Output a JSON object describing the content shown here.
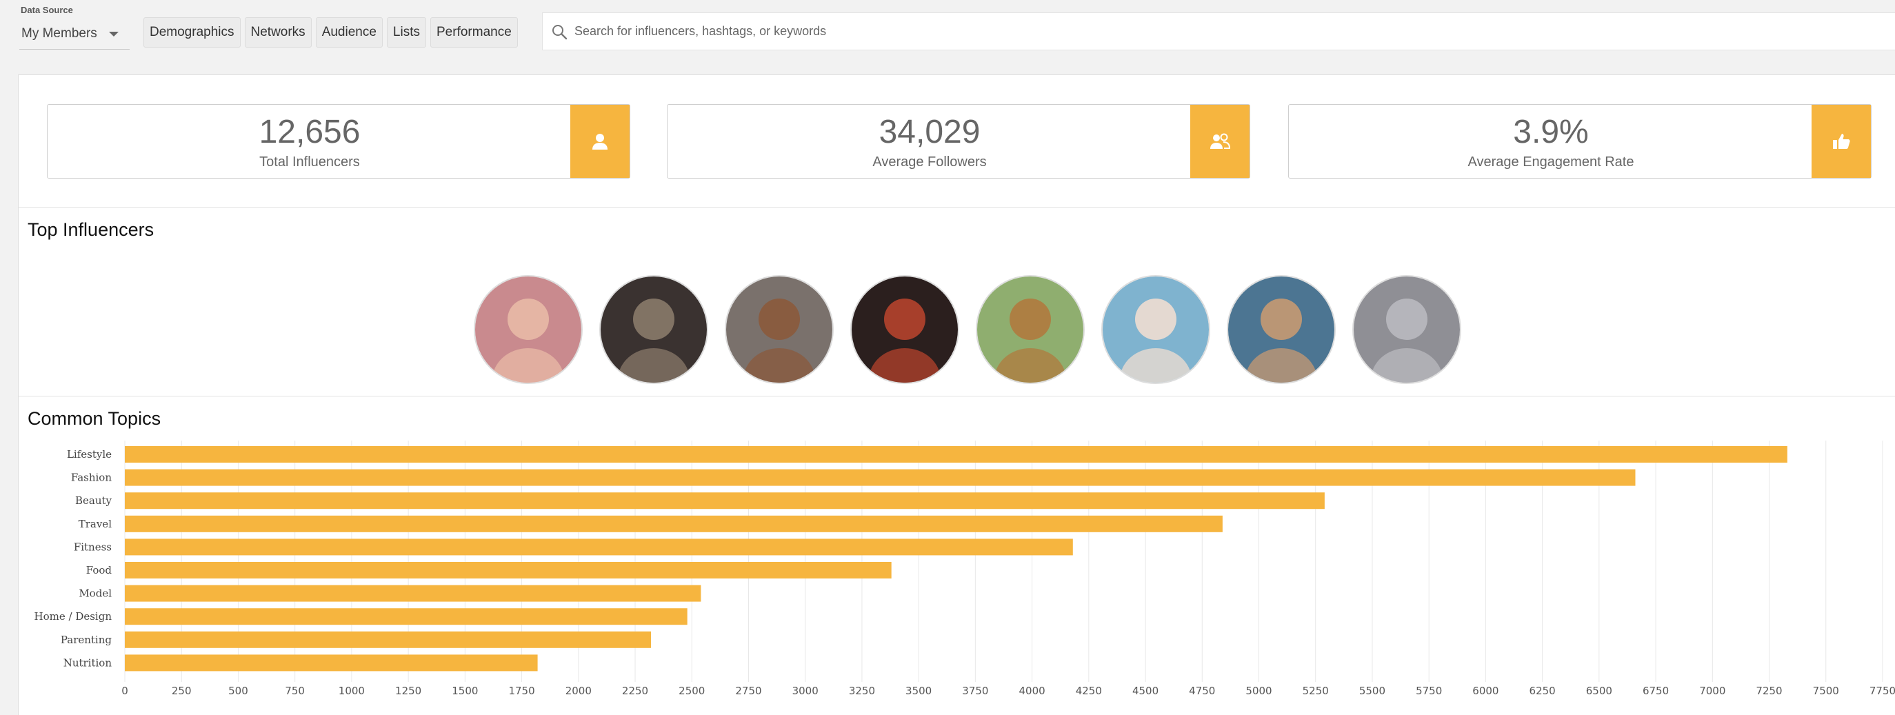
{
  "data_source": {
    "label": "Data Source",
    "selected": "My Members"
  },
  "filters": [
    "Demographics",
    "Networks",
    "Audience",
    "Lists",
    "Performance"
  ],
  "search": {
    "placeholder": "Search for influencers, hashtags, or keywords",
    "value": ""
  },
  "stats": [
    {
      "value": "12,656",
      "label": "Total Influencers",
      "icon": "person-icon"
    },
    {
      "value": "34,029",
      "label": "Average Followers",
      "icon": "people-icon"
    },
    {
      "value": "3.9%",
      "label": "Average Engagement Rate",
      "icon": "thumbs-up-icon"
    }
  ],
  "top_influencers": {
    "title": "Top Influencers",
    "avatars": [
      {
        "name": "influencer-avatar-1",
        "bg": "#c98a8e",
        "fg": "#e8b9a6"
      },
      {
        "name": "influencer-avatar-2",
        "bg": "#3a3230",
        "fg": "#8a7a6a"
      },
      {
        "name": "influencer-avatar-3",
        "bg": "#7a716c",
        "fg": "#8b5a3c"
      },
      {
        "name": "influencer-avatar-4",
        "bg": "#2b1f1e",
        "fg": "#b5432c"
      },
      {
        "name": "influencer-avatar-5",
        "bg": "#8fae6f",
        "fg": "#b07a3e"
      },
      {
        "name": "influencer-avatar-6",
        "bg": "#7fb3cf",
        "fg": "#f0ddd0"
      },
      {
        "name": "influencer-avatar-7",
        "bg": "#4c7592",
        "fg": "#c79a72"
      },
      {
        "name": "influencer-avatar-8",
        "bg": "#8f8f95",
        "fg": "#b9b9bf"
      }
    ]
  },
  "common_topics": {
    "title": "Common Topics"
  },
  "colors": {
    "accent": "#f6b53f",
    "bar": "#f6b53f",
    "grid": "#e8e8e8"
  },
  "chart_data": {
    "type": "bar",
    "orientation": "horizontal",
    "categories": [
      "Lifestyle",
      "Fashion",
      "Beauty",
      "Travel",
      "Fitness",
      "Food",
      "Model",
      "Home / Design",
      "Parenting",
      "Nutrition"
    ],
    "values": [
      7330,
      6660,
      5290,
      4840,
      4180,
      3380,
      2540,
      2480,
      2320,
      1820
    ],
    "xticks": [
      "0",
      "250",
      "500",
      "750",
      "1000",
      "1250",
      "1500",
      "1750",
      "2000",
      "2250",
      "2500",
      "2750",
      "3000",
      "3250",
      "3500",
      "3750",
      "4000",
      "4250",
      "4500",
      "4750",
      "5000",
      "5250",
      "5500",
      "5750",
      "6000",
      "6250",
      "6500",
      "6750",
      "7000",
      "7250",
      "7500",
      "7750"
    ],
    "xlim": [
      0,
      7750
    ],
    "grid": true
  }
}
